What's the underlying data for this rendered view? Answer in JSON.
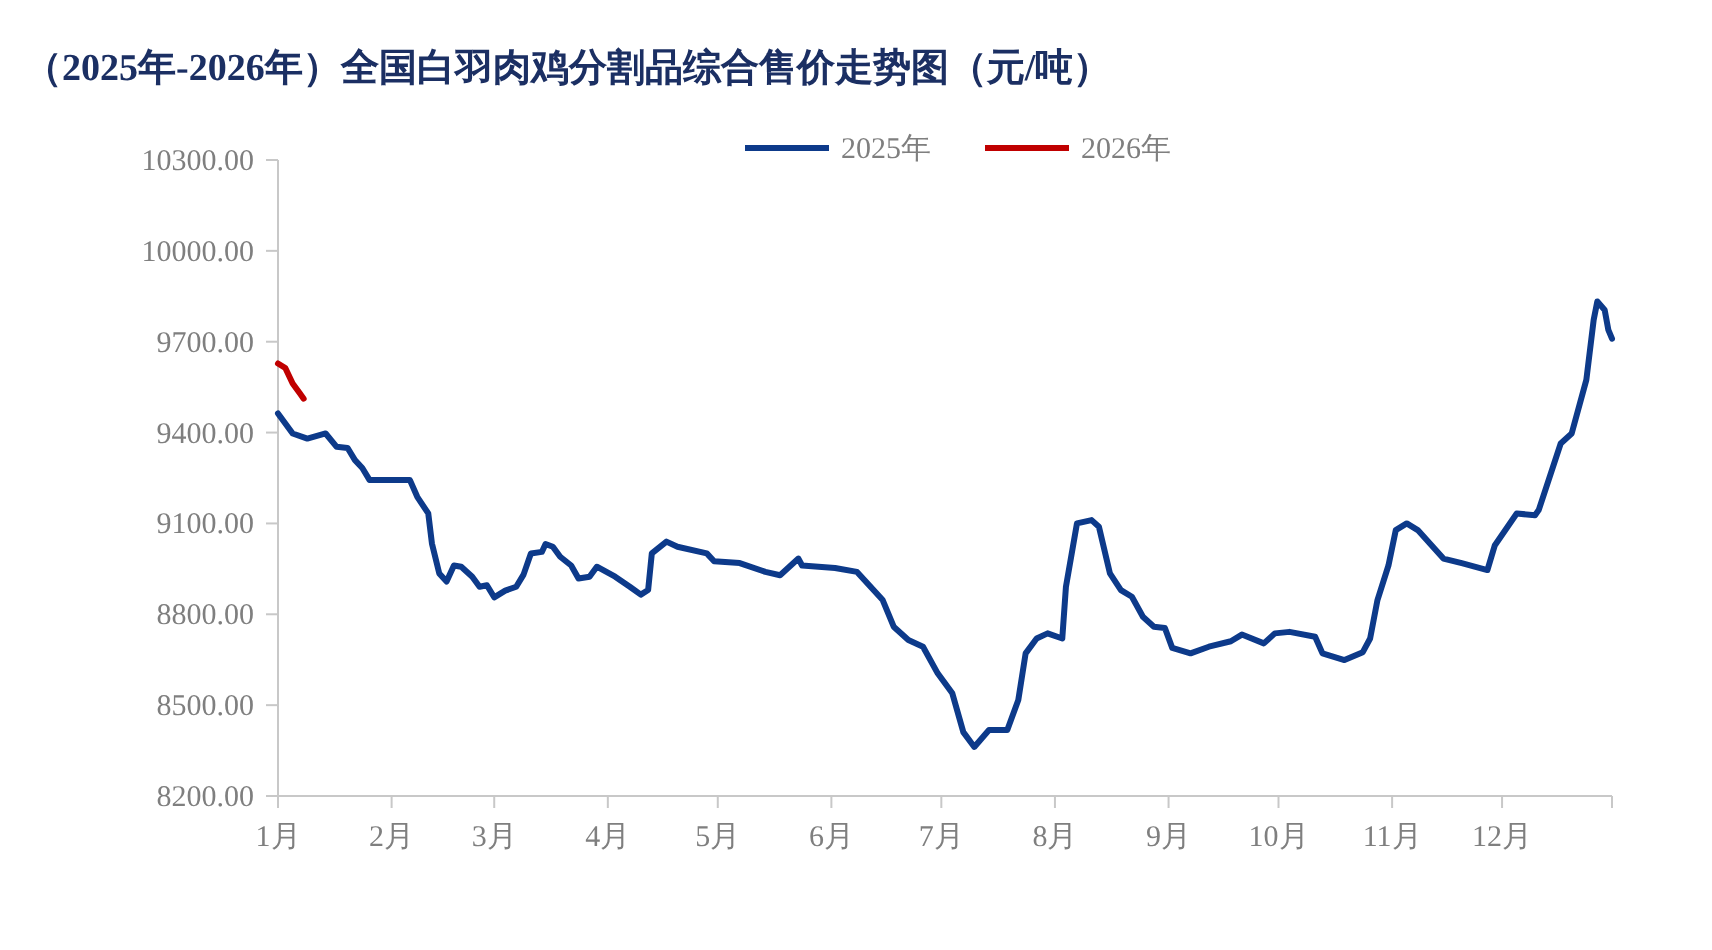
{
  "chart_data": {
    "type": "line",
    "title": "（2025年-2026年）全国白羽肉鸡分割品综合售价走势图（元/吨）",
    "xlim": [
      "--01-01",
      "--12-31"
    ],
    "xticks": [
      {
        "value": "--01-01",
        "label": "1月"
      },
      {
        "value": "--02-01",
        "label": "2月"
      },
      {
        "value": "--03-01",
        "label": "3月"
      },
      {
        "value": "--04-01",
        "label": "4月"
      },
      {
        "value": "--05-01",
        "label": "5月"
      },
      {
        "value": "--06-01",
        "label": "6月"
      },
      {
        "value": "--07-01",
        "label": "7月"
      },
      {
        "value": "--08-01",
        "label": "8月"
      },
      {
        "value": "--09-01",
        "label": "9月"
      },
      {
        "value": "--10-01",
        "label": "10月"
      },
      {
        "value": "--11-01",
        "label": "11月"
      },
      {
        "value": "--12-01",
        "label": "12月"
      },
      {
        "value": "--12-31",
        "label": null
      }
    ],
    "ylim": [
      8200,
      10300
    ],
    "yticks": [
      {
        "value": 8200,
        "label": "8200.00"
      },
      {
        "value": 8500,
        "label": "8500.00"
      },
      {
        "value": 8800,
        "label": "8800.00"
      },
      {
        "value": 9100,
        "label": "9100.00"
      },
      {
        "value": 9400,
        "label": "9400.00"
      },
      {
        "value": 9700,
        "label": "9700.00"
      },
      {
        "value": 10000,
        "label": "10000.00"
      },
      {
        "value": 10300,
        "label": "10300.00"
      }
    ],
    "grid": false,
    "legend": "top",
    "marker": "none",
    "line_style": "solid",
    "series": [
      {
        "name": "2025年",
        "color": "#0d3a8a",
        "x": [
          "--01-01",
          "--01-05",
          "--01-09",
          "--01-14",
          "--01-17",
          "--01-20",
          "--01-22",
          "--01-24",
          "--01-26",
          "--02-06",
          "--02-08",
          "--02-11",
          "--02-12",
          "--02-14",
          "--02-16",
          "--02-18",
          "--02-20",
          "--02-23",
          "--02-25",
          "--02-27",
          "--03-01",
          "--03-04",
          "--03-07",
          "--03-09",
          "--03-11",
          "--03-14",
          "--03-15",
          "--03-17",
          "--03-19",
          "--03-22",
          "--03-24",
          "--03-27",
          "--03-29",
          "--04-03",
          "--04-07",
          "--04-10",
          "--04-12",
          "--04-13",
          "--04-17",
          "--04-20",
          "--04-28",
          "--04-30",
          "--05-07",
          "--05-14",
          "--05-18",
          "--05-23",
          "--05-24",
          "--06-02",
          "--06-08",
          "--06-10",
          "--06-15",
          "--06-18",
          "--06-22",
          "--06-26",
          "--06-30",
          "--07-04",
          "--07-07",
          "--07-10",
          "--07-14",
          "--07-19",
          "--07-22",
          "--07-24",
          "--07-27",
          "--07-30",
          "--08-03",
          "--08-04",
          "--08-07",
          "--08-11",
          "--08-13",
          "--08-16",
          "--08-19",
          "--08-22",
          "--08-25",
          "--08-28",
          "--08-31",
          "--09-02",
          "--09-07",
          "--09-12",
          "--09-18",
          "--09-21",
          "--09-27",
          "--09-30",
          "--10-04",
          "--10-11",
          "--10-13",
          "--10-19",
          "--10-24",
          "--10-26",
          "--10-28",
          "--10-31",
          "--11-02",
          "--11-05",
          "--11-08",
          "--11-15",
          "--11-20",
          "--11-27",
          "--11-29",
          "--12-05",
          "--12-10",
          "--12-11",
          "--12-17",
          "--12-20",
          "--12-24",
          "--12-26",
          "--12-27",
          "--12-29",
          "--12-30",
          "--12-31"
        ],
        "values": [
          9463,
          9397,
          9380,
          9397,
          9353,
          9349,
          9309,
          9283,
          9243,
          9243,
          9188,
          9133,
          9034,
          8935,
          8908,
          8961,
          8957,
          8924,
          8891,
          8896,
          8856,
          8878,
          8891,
          8931,
          9001,
          9006,
          9032,
          9023,
          8990,
          8961,
          8918,
          8924,
          8957,
          8924,
          8891,
          8865,
          8880,
          9001,
          9040,
          9023,
          9001,
          8975,
          8969,
          8940,
          8929,
          8984,
          8961,
          8953,
          8940,
          8913,
          8847,
          8759,
          8715,
          8693,
          8605,
          8539,
          8411,
          8362,
          8418,
          8418,
          8517,
          8671,
          8720,
          8737,
          8720,
          8891,
          9100,
          9111,
          9089,
          8935,
          8880,
          8858,
          8792,
          8759,
          8755,
          8689,
          8671,
          8693,
          8711,
          8733,
          8704,
          8737,
          8742,
          8726,
          8671,
          8649,
          8675,
          8720,
          8847,
          8961,
          9078,
          9100,
          9078,
          8984,
          8969,
          8946,
          9027,
          9133,
          9127,
          9144,
          9364,
          9397,
          9574,
          9772,
          9833,
          9805,
          9739,
          9710
        ]
      },
      {
        "name": "2026年",
        "color": "#c00000",
        "x": [
          "--01-01",
          "--01-03",
          "--01-05",
          "--01-07",
          "--01-08"
        ],
        "values": [
          9628,
          9613,
          9562,
          9529,
          9512
        ]
      }
    ]
  }
}
